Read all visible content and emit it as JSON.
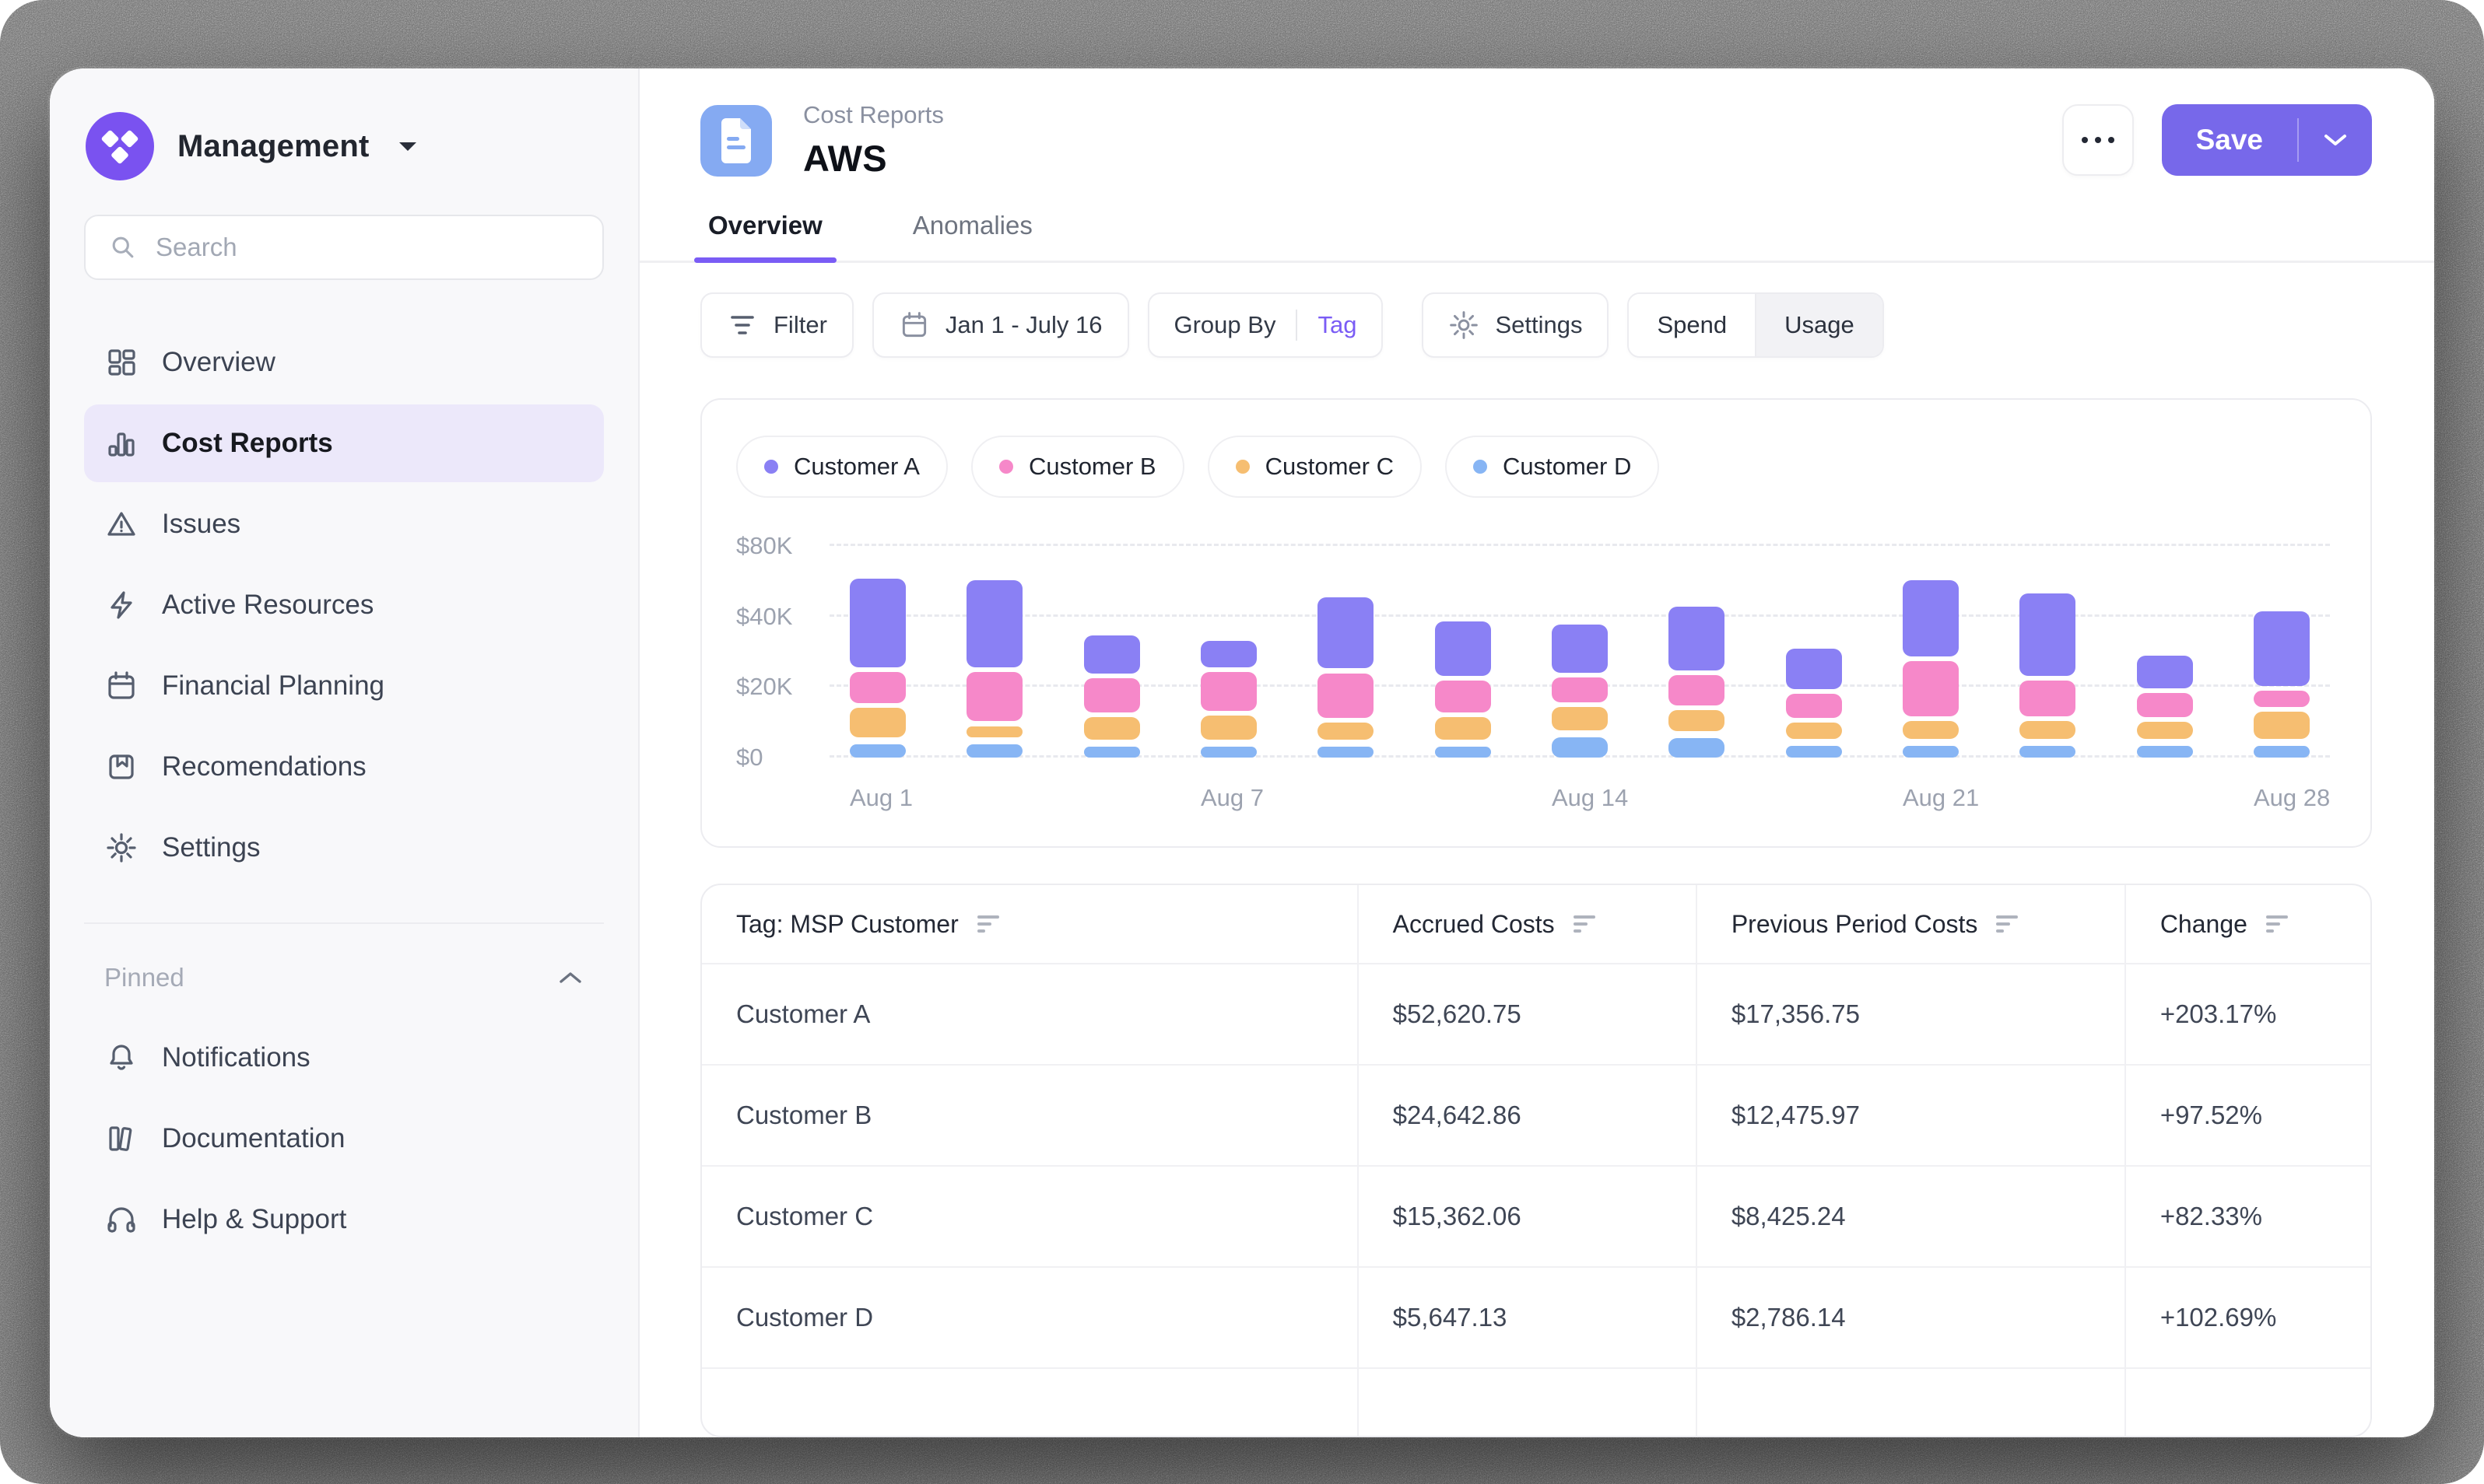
{
  "app": {
    "workspace": "Management"
  },
  "sidebar": {
    "search_placeholder": "Search",
    "nav": [
      {
        "label": "Overview",
        "icon": "dashboard",
        "active": false
      },
      {
        "label": "Cost Reports",
        "icon": "bar-chart",
        "active": true
      },
      {
        "label": "Issues",
        "icon": "warning",
        "active": false
      },
      {
        "label": "Active Resources",
        "icon": "lightning",
        "active": false
      },
      {
        "label": "Financial Planning",
        "icon": "calendar",
        "active": false
      },
      {
        "label": "Recomendations",
        "icon": "bookmark",
        "active": false
      },
      {
        "label": "Settings",
        "icon": "gear",
        "active": false
      }
    ],
    "pinned": {
      "label": "Pinned",
      "items": [
        {
          "label": "Notifications",
          "icon": "bell"
        },
        {
          "label": "Documentation",
          "icon": "book"
        },
        {
          "label": "Help & Support",
          "icon": "headphones"
        }
      ]
    }
  },
  "header": {
    "eyebrow": "Cost Reports",
    "title": "AWS",
    "tabs": [
      {
        "label": "Overview",
        "active": true
      },
      {
        "label": "Anomalies",
        "active": false
      }
    ],
    "save_label": "Save"
  },
  "toolbar": {
    "filter_label": "Filter",
    "date_range": "Jan 1 - July 16",
    "group_by_label": "Group By",
    "group_by_value": "Tag",
    "settings_label": "Settings",
    "view_toggle": {
      "options": [
        "Spend",
        "Usage"
      ],
      "selected": "Spend"
    }
  },
  "colors": {
    "accent_purple": "#7a5cf5",
    "save_button": "#7768ea",
    "logo_purple": "#7a52f0",
    "doc_tile_blue": "#85aaf2",
    "active_nav_bg": "#ece8fa"
  },
  "chart_data": {
    "type": "bar",
    "stacked": true,
    "title": "",
    "unit": "thousand USD",
    "legend_position": "top",
    "grid": "dashed horizontal",
    "y_axis": {
      "breaks": [
        0,
        20,
        40,
        80
      ],
      "ticks": [
        {
          "value": 0,
          "label": "$0"
        },
        {
          "value": 20,
          "label": "$20K"
        },
        {
          "value": 40,
          "label": "$40K"
        },
        {
          "value": 80,
          "label": "$80K"
        }
      ],
      "note": "non-linear scale: 0,20K,40K,80K gridlines equally spaced"
    },
    "x_tick_labels": {
      "0": "Aug 1",
      "3": "Aug 7",
      "6": "Aug 14",
      "9": "Aug 21",
      "12": "Aug 28"
    },
    "bar_count": 13,
    "series": [
      {
        "name": "Customer D",
        "color": "#87b5f4",
        "values": [
          5,
          5,
          4.5,
          4.5,
          4.5,
          4.5,
          7,
          6.8,
          4.6,
          4.6,
          4.6,
          4.6,
          4.6
        ]
      },
      {
        "name": "Customer C",
        "color": "#f6be71",
        "values": [
          9.7,
          4.6,
          7.7,
          8.1,
          6.2,
          7.7,
          8.1,
          7.4,
          6.1,
          6.4,
          6.4,
          6.2,
          9.0
        ]
      },
      {
        "name": "Customer B",
        "color": "#f688c9",
        "values": [
          10.2,
          15.4,
          11.0,
          12.3,
          13.9,
          10.3,
          8.3,
          9.9,
          8.1,
          17.1,
          11.4,
          8.1,
          6.1
        ]
      },
      {
        "name": "Customer A",
        "color": "#8a80f4",
        "values": [
          37.9,
          36.8,
          12.2,
          8.8,
          27.4,
          16.8,
          15.0,
          23.0,
          12.7,
          34.0,
          32.1,
          10.7,
          24.7
        ]
      }
    ],
    "legend_order": [
      "Customer A",
      "Customer B",
      "Customer C",
      "Customer D"
    ]
  },
  "table": {
    "columns": [
      {
        "label": "Tag: MSP Customer",
        "sortable": true
      },
      {
        "label": "Accrued Costs",
        "sortable": true
      },
      {
        "label": "Previous Period Costs",
        "sortable": true
      },
      {
        "label": "Change",
        "sortable": true
      }
    ],
    "rows": [
      {
        "tag": "Customer A",
        "accrued": "$52,620.75",
        "previous": "$17,356.75",
        "change": "+203.17%"
      },
      {
        "tag": "Customer B",
        "accrued": "$24,642.86",
        "previous": "$12,475.97",
        "change": "+97.52%"
      },
      {
        "tag": "Customer C",
        "accrued": "$15,362.06",
        "previous": "$8,425.24",
        "change": "+82.33%"
      },
      {
        "tag": "Customer D",
        "accrued": "$5,647.13",
        "previous": "$2,786.14",
        "change": "+102.69%"
      }
    ],
    "truncated_row_visible": true
  }
}
